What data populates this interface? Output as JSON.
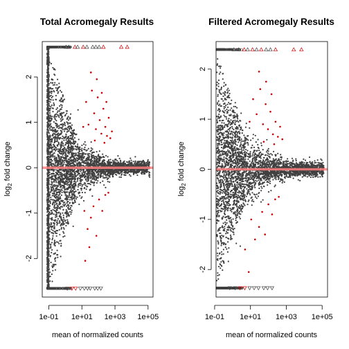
{
  "chart_data": [
    {
      "type": "scatter",
      "title": "Total Acromegaly Results",
      "xlabel": "mean of normalized counts",
      "ylabel_main": "log",
      "ylabel_sub": "2",
      "ylabel_rest": " fold change",
      "x_scale": "log10",
      "xlim": [
        0.04,
        200000
      ],
      "ylim": [
        -2.85,
        2.78
      ],
      "x_ticks": [
        0.1,
        10,
        1000,
        100000
      ],
      "x_tick_labels": [
        "1e-01",
        "1e+01",
        "1e+03",
        "1e+05"
      ],
      "y_ticks": [
        -2,
        -1,
        0,
        1,
        2
      ],
      "y_tick_labels": [
        "-2",
        "-1",
        "0",
        "1",
        "2"
      ],
      "clip_y": [
        -2.66,
        2.66
      ],
      "reference_line": {
        "y": 0,
        "color": "#ff8080"
      },
      "point_color": "#404040",
      "significant_color": "#cc0000",
      "band_x": 0.09,
      "significant_points": [
        {
          "x": 18,
          "y": 1.45
        },
        {
          "x": 25,
          "y": 0.95
        },
        {
          "x": 40,
          "y": 1.7
        },
        {
          "x": 55,
          "y": 1.2
        },
        {
          "x": 70,
          "y": 0.85
        },
        {
          "x": 90,
          "y": 1.55
        },
        {
          "x": 120,
          "y": 1.05
        },
        {
          "x": 150,
          "y": 0.75
        },
        {
          "x": 200,
          "y": 1.3
        },
        {
          "x": 260,
          "y": 0.9
        },
        {
          "x": 330,
          "y": 0.7
        },
        {
          "x": 420,
          "y": 1.1
        },
        {
          "x": 520,
          "y": 0.65
        },
        {
          "x": 650,
          "y": 0.8
        },
        {
          "x": 35,
          "y": 2.1
        },
        {
          "x": 80,
          "y": 1.95
        },
        {
          "x": 160,
          "y": 1.65
        },
        {
          "x": 300,
          "y": 1.45
        },
        {
          "x": 14,
          "y": -0.95
        },
        {
          "x": 22,
          "y": -1.35
        },
        {
          "x": 35,
          "y": -1.1
        },
        {
          "x": 50,
          "y": -0.85
        },
        {
          "x": 75,
          "y": -1.5
        },
        {
          "x": 110,
          "y": -0.7
        },
        {
          "x": 170,
          "y": -0.95
        },
        {
          "x": 260,
          "y": -0.6
        },
        {
          "x": 16,
          "y": -2.05
        },
        {
          "x": 28,
          "y": -1.75
        },
        {
          "x": 400,
          "y": -0.55
        },
        {
          "x": 60,
          "y": 0.6
        },
        {
          "x": 230,
          "y": 0.55
        },
        {
          "x": 12,
          "y": 0.9
        }
      ],
      "outliers_top": [
        {
          "x": 1.1,
          "sig": false
        },
        {
          "x": 1.6,
          "sig": false
        },
        {
          "x": 3.8,
          "sig": true
        },
        {
          "x": 5.5,
          "sig": false
        },
        {
          "x": 12,
          "sig": true
        },
        {
          "x": 20,
          "sig": false
        },
        {
          "x": 45,
          "sig": false
        },
        {
          "x": 70,
          "sig": false
        },
        {
          "x": 110,
          "sig": false
        },
        {
          "x": 200,
          "sig": true
        },
        {
          "x": 2400,
          "sig": true
        },
        {
          "x": 5500,
          "sig": true
        }
      ],
      "outliers_bottom": [
        {
          "x": 1.3,
          "sig": false
        },
        {
          "x": 2.5,
          "sig": true
        },
        {
          "x": 4.2,
          "sig": true
        },
        {
          "x": 8,
          "sig": false
        },
        {
          "x": 14,
          "sig": false
        },
        {
          "x": 22,
          "sig": false
        },
        {
          "x": 32,
          "sig": false
        },
        {
          "x": 60,
          "sig": false
        },
        {
          "x": 90,
          "sig": false
        },
        {
          "x": 140,
          "sig": false
        }
      ]
    },
    {
      "type": "scatter",
      "title": "Filtered Acromegaly Results",
      "xlabel": "mean of normalized counts",
      "ylabel_main": "log",
      "ylabel_sub": "2",
      "ylabel_rest": " fold change",
      "x_scale": "log10",
      "xlim": [
        0.12,
        200000
      ],
      "ylim": [
        -2.55,
        2.55
      ],
      "x_ticks": [
        0.1,
        10,
        1000,
        100000
      ],
      "x_tick_labels": [
        "1e-01",
        "1e+01",
        "1e+03",
        "1e+05"
      ],
      "y_ticks": [
        -2,
        -1,
        0,
        1,
        2
      ],
      "y_tick_labels": [
        "-2",
        "-1",
        "0",
        "1",
        "2"
      ],
      "clip_y": [
        -2.37,
        2.39
      ],
      "reference_line": {
        "y": 0,
        "color": "#ff8080"
      },
      "point_color": "#404040",
      "significant_color": "#cc0000",
      "band_x": null,
      "significant_points": [
        {
          "x": 14,
          "y": 1.4
        },
        {
          "x": 22,
          "y": 1.1
        },
        {
          "x": 35,
          "y": 1.6
        },
        {
          "x": 50,
          "y": 0.9
        },
        {
          "x": 70,
          "y": 1.3
        },
        {
          "x": 95,
          "y": 0.8
        },
        {
          "x": 130,
          "y": 1.15
        },
        {
          "x": 180,
          "y": 0.7
        },
        {
          "x": 250,
          "y": 0.95
        },
        {
          "x": 340,
          "y": 0.65
        },
        {
          "x": 450,
          "y": 0.85
        },
        {
          "x": 600,
          "y": 0.6
        },
        {
          "x": 30,
          "y": 1.95
        },
        {
          "x": 75,
          "y": 1.75
        },
        {
          "x": 150,
          "y": 1.5
        },
        {
          "x": 11,
          "y": -1.0
        },
        {
          "x": 18,
          "y": -1.4
        },
        {
          "x": 30,
          "y": -1.15
        },
        {
          "x": 45,
          "y": -0.85
        },
        {
          "x": 65,
          "y": -1.3
        },
        {
          "x": 100,
          "y": -0.7
        },
        {
          "x": 160,
          "y": -0.9
        },
        {
          "x": 240,
          "y": -0.6
        },
        {
          "x": 5,
          "y": -1.6
        },
        {
          "x": 8,
          "y": -2.05
        },
        {
          "x": 380,
          "y": -0.55
        },
        {
          "x": 55,
          "y": 0.55
        },
        {
          "x": 210,
          "y": 0.5
        },
        {
          "x": 9,
          "y": 0.95
        }
      ],
      "outliers_top": [
        {
          "x": 1.2,
          "sig": false
        },
        {
          "x": 2.2,
          "sig": false
        },
        {
          "x": 4.5,
          "sig": true
        },
        {
          "x": 7,
          "sig": false
        },
        {
          "x": 13,
          "sig": true
        },
        {
          "x": 22,
          "sig": false
        },
        {
          "x": 40,
          "sig": true
        },
        {
          "x": 75,
          "sig": false
        },
        {
          "x": 130,
          "sig": false
        },
        {
          "x": 250,
          "sig": true
        },
        {
          "x": 2600,
          "sig": true
        },
        {
          "x": 7000,
          "sig": true
        }
      ],
      "outliers_bottom": [
        {
          "x": 0.7,
          "sig": false
        },
        {
          "x": 1.4,
          "sig": false
        },
        {
          "x": 2.6,
          "sig": true
        },
        {
          "x": 4.8,
          "sig": true
        },
        {
          "x": 9,
          "sig": false
        },
        {
          "x": 16,
          "sig": false
        },
        {
          "x": 28,
          "sig": false
        },
        {
          "x": 55,
          "sig": false
        },
        {
          "x": 90,
          "sig": false
        },
        {
          "x": 160,
          "sig": false
        }
      ]
    }
  ]
}
